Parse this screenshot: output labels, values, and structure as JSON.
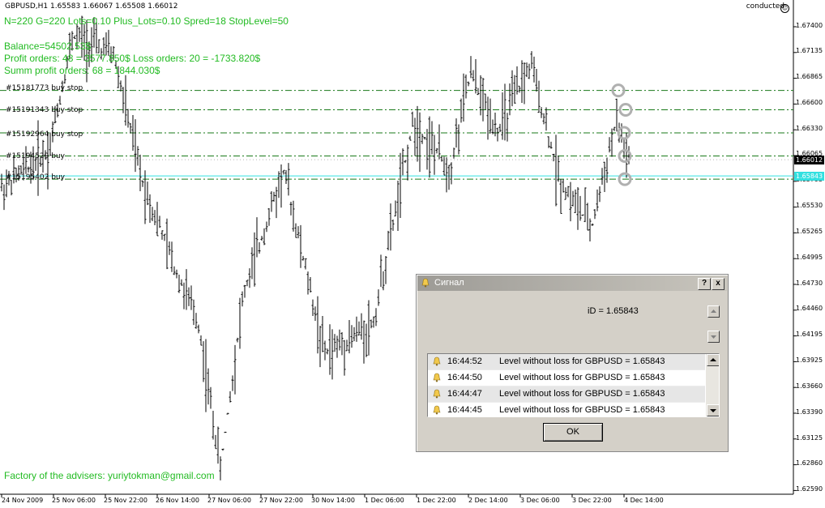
{
  "chart": {
    "symbol_header": "GBPUSD,H1  1.65583 1.66067 1.65508 1.66012",
    "status": "conducted",
    "ea_info": [
      "N=220  G=220  Lots=0.10  Plus_Lots=0.10  Spred=18  StopLevel=50",
      "Balance=54502.53$",
      "Profit orders: 48 = 3577.850$     Loss orders: 20 = -1733.820$",
      "Summ profit orders: 68 = 1844.030$"
    ],
    "footer_text": "Factory of the advisers: yuriytokman@gmail.com",
    "orders": [
      {
        "label": "#15181773 buy stop",
        "price": 1.6673
      },
      {
        "label": "#15191343 buy stop",
        "price": 1.6653
      },
      {
        "label": "#15192964 buy stop",
        "price": 1.6629
      },
      {
        "label": "#15194529 buy",
        "price": 1.6605
      },
      {
        "label": "#15195402 buy",
        "price": 1.6581
      }
    ],
    "bid_price": "1.66012",
    "level_price": "1.65843",
    "price_ticks": [
      "1.67400",
      "1.67135",
      "1.66865",
      "1.66600",
      "1.66330",
      "1.66065",
      "1.65795",
      "1.65530",
      "1.65265",
      "1.64995",
      "1.64730",
      "1.64460",
      "1.64195",
      "1.63925",
      "1.63660",
      "1.63390",
      "1.63125",
      "1.62860",
      "1.62590"
    ],
    "time_ticks": [
      "24 Nov 2009",
      "25 Nov 06:00",
      "25 Nov 22:00",
      "26 Nov 14:00",
      "27 Nov 06:00",
      "27 Nov 22:00",
      "30 Nov 14:00",
      "1 Dec 06:00",
      "1 Dec 22:00",
      "2 Dec 14:00",
      "3 Dec 06:00",
      "3 Dec 22:00",
      "4 Dec 14:00"
    ],
    "colors": {
      "ea_text": "#22bb22",
      "order_line": "#1a7a1a",
      "level_line": "#33e0e0",
      "bars": "#000000",
      "bid_box": "#000000"
    }
  },
  "dialog": {
    "title": "Сигнал",
    "help_button": "?",
    "close_button": "x",
    "message": "iD = 1.65843",
    "alerts": [
      {
        "time": "16:44:52",
        "text": "Level without loss for GBPUSD = 1.65843",
        "icon": "bell-icon"
      },
      {
        "time": "16:44:50",
        "text": "Level without loss for GBPUSD = 1.65843",
        "icon": "bell-icon"
      },
      {
        "time": "16:44:47",
        "text": "Level without loss for GBPUSD = 1.65843",
        "icon": "bell-icon"
      },
      {
        "time": "16:44:45",
        "text": "Level without loss for GBPUSD = 1.65843",
        "icon": "bell-icon"
      }
    ],
    "ok_label": "OK"
  }
}
